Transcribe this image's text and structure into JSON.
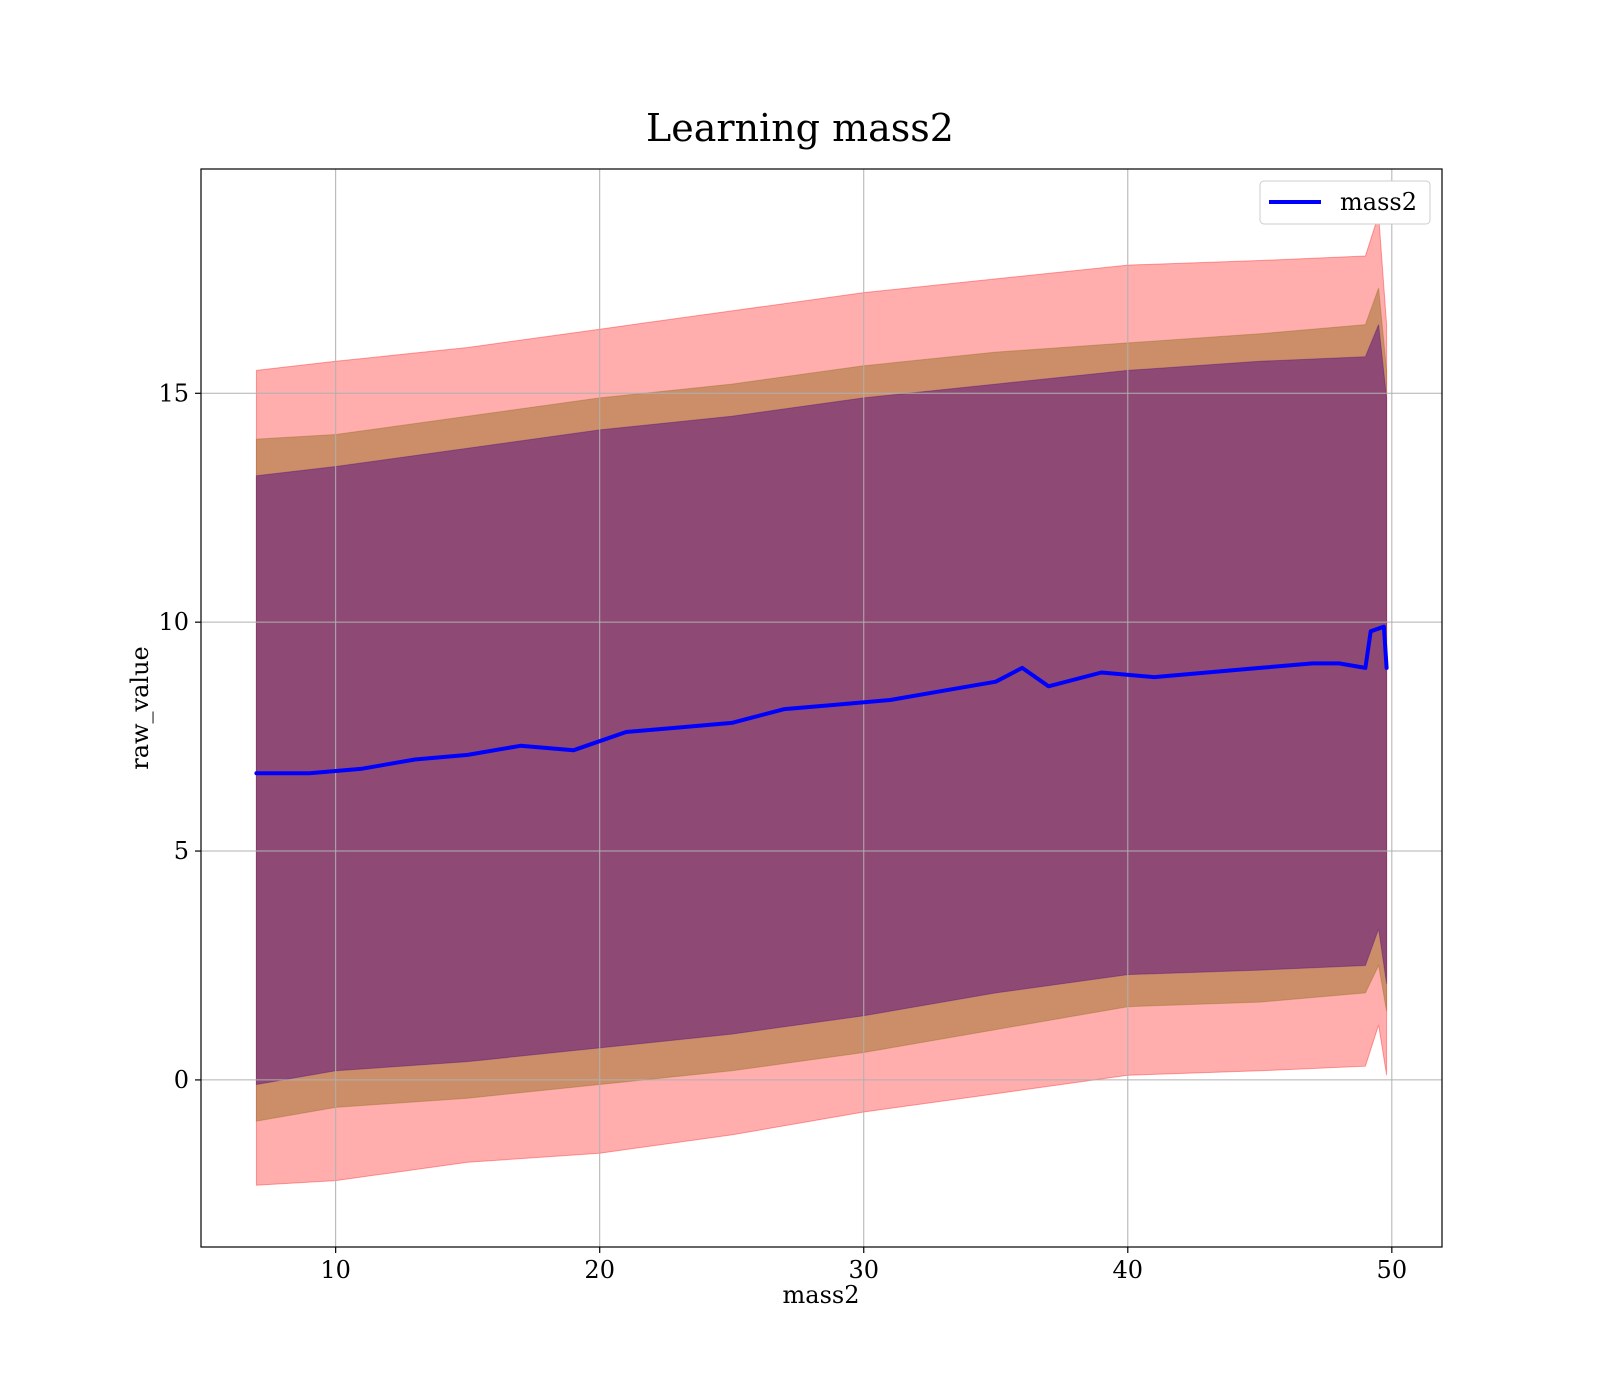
{
  "chart_data": {
    "type": "line",
    "title": "Learning mass2",
    "xlabel": "mass2",
    "ylabel": "raw_value",
    "xlim": [
      4.9,
      51.9
    ],
    "ylim": [
      -3.65,
      19.9
    ],
    "xticks": [
      10,
      20,
      30,
      40,
      50
    ],
    "yticks": [
      0,
      5,
      10,
      15
    ],
    "grid": true,
    "legend": {
      "position": "top-right",
      "entries": [
        "mass2"
      ]
    },
    "colors": {
      "line": "#0000ff",
      "band_outer": "#ff0000",
      "band_middle": "#8b6914",
      "band_inner": "#4b0082",
      "grid": "#b0b0b0"
    },
    "series": [
      {
        "name": "mass2",
        "x": [
          7,
          9,
          11,
          13,
          15,
          17,
          19,
          21,
          23,
          25,
          27,
          29,
          31,
          33,
          35,
          36,
          37,
          39,
          41,
          43,
          45,
          47,
          48,
          49,
          49.2,
          49.7,
          49.8
        ],
        "y": [
          6.7,
          6.7,
          6.8,
          7.0,
          7.1,
          7.3,
          7.2,
          7.6,
          7.7,
          7.8,
          8.1,
          8.2,
          8.3,
          8.5,
          8.7,
          9.0,
          8.6,
          8.9,
          8.8,
          8.9,
          9.0,
          9.1,
          9.1,
          9.0,
          9.8,
          9.9,
          9.0
        ]
      }
    ],
    "bands": [
      {
        "level": "outer",
        "x": [
          7,
          10,
          15,
          20,
          25,
          30,
          35,
          40,
          45,
          49,
          49.5,
          49.8
        ],
        "upper": [
          15.5,
          15.7,
          16.0,
          16.4,
          16.8,
          17.2,
          17.5,
          17.8,
          17.9,
          18.0,
          18.9,
          16.5
        ],
        "lower": [
          -2.3,
          -2.2,
          -1.8,
          -1.6,
          -1.2,
          -0.7,
          -0.3,
          0.1,
          0.2,
          0.3,
          1.2,
          0.1
        ]
      },
      {
        "level": "middle",
        "x": [
          7,
          10,
          15,
          20,
          25,
          30,
          35,
          40,
          45,
          49,
          49.5,
          49.8
        ],
        "upper": [
          14.0,
          14.1,
          14.5,
          14.9,
          15.2,
          15.6,
          15.9,
          16.1,
          16.3,
          16.5,
          17.3,
          15.5
        ],
        "lower": [
          -0.9,
          -0.6,
          -0.4,
          -0.1,
          0.2,
          0.6,
          1.1,
          1.6,
          1.7,
          1.9,
          2.5,
          1.5
        ]
      },
      {
        "level": "inner",
        "x": [
          7,
          10,
          15,
          20,
          25,
          30,
          35,
          40,
          45,
          49,
          49.5,
          49.8
        ],
        "upper": [
          13.2,
          13.4,
          13.8,
          14.2,
          14.5,
          14.9,
          15.2,
          15.5,
          15.7,
          15.8,
          16.5,
          14.9
        ],
        "lower": [
          -0.1,
          0.2,
          0.4,
          0.7,
          1.0,
          1.4,
          1.9,
          2.3,
          2.4,
          2.5,
          3.3,
          2.1
        ]
      }
    ]
  }
}
